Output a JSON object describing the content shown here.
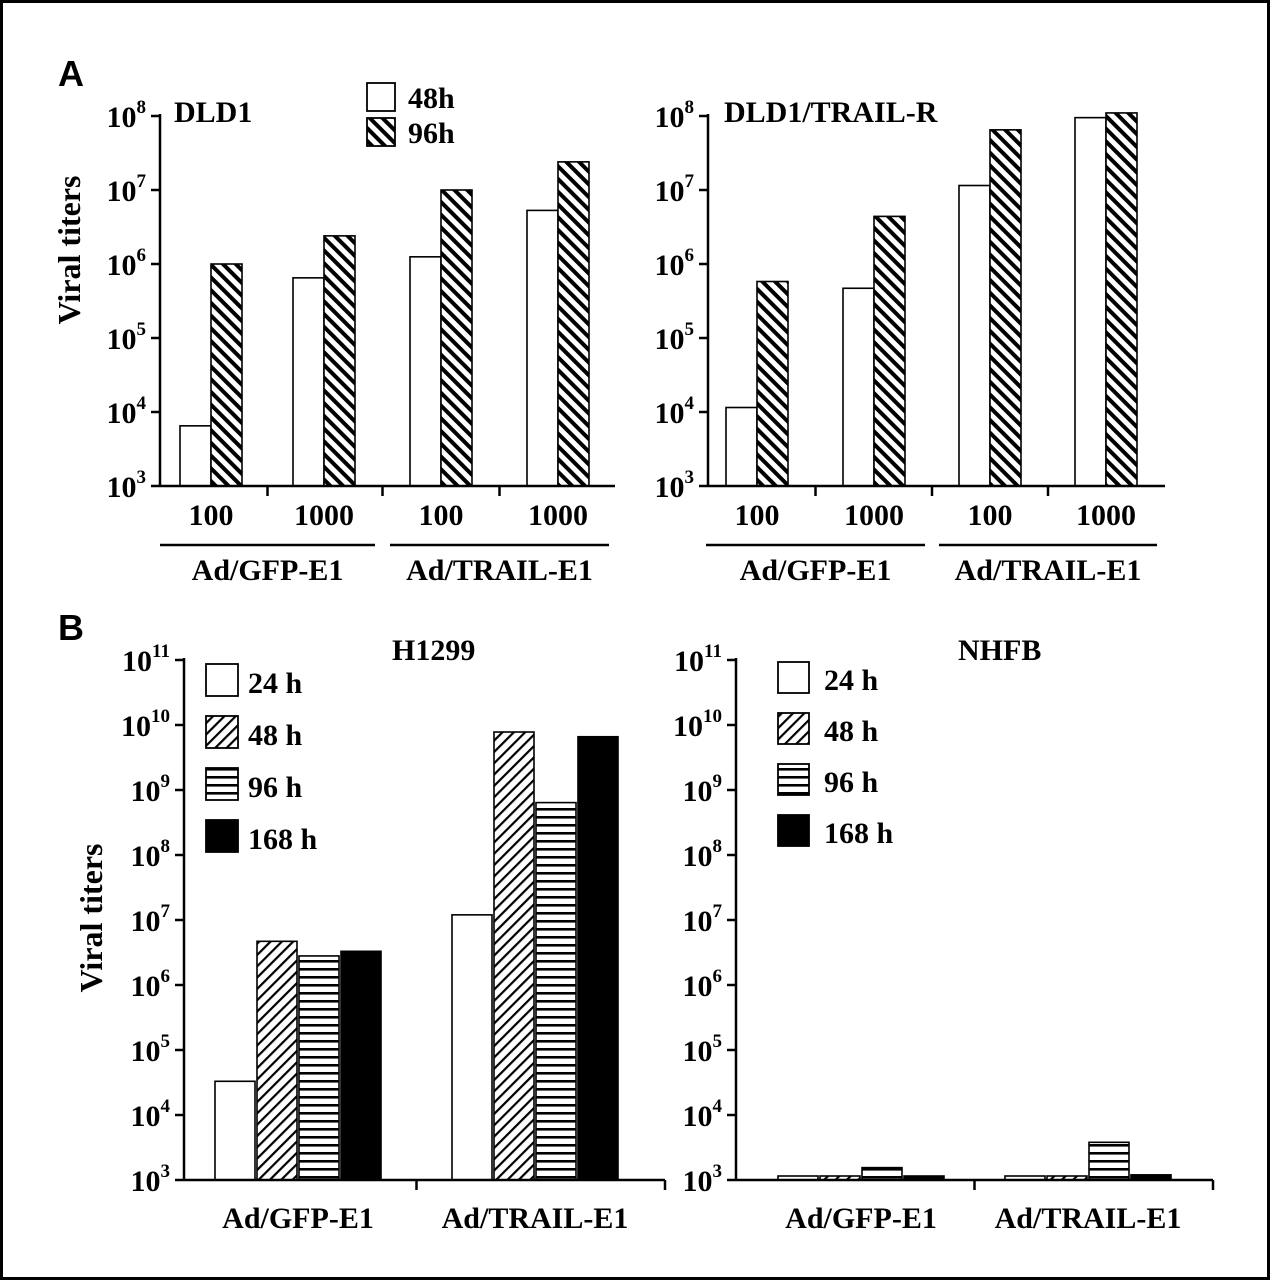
{
  "chart_data": [
    {
      "panel": "A",
      "type": "bar",
      "scale": "log",
      "title": "DLD1",
      "ylabel": "Viral titers",
      "ylim_exponents": [
        3,
        8
      ],
      "tick_exponents": [
        3,
        4,
        5,
        6,
        7,
        8
      ],
      "categories": [
        "100",
        "1000",
        "100",
        "1000"
      ],
      "groups": [
        {
          "label": "Ad/GFP-E1",
          "span": [
            0,
            1
          ]
        },
        {
          "label": "Ad/TRAIL-E1",
          "span": [
            2,
            3
          ]
        }
      ],
      "legend": {
        "position": "top-center"
      },
      "series": [
        {
          "name": "48h",
          "pattern": "white",
          "values": [
            6500,
            650000,
            1250000,
            5300000
          ]
        },
        {
          "name": "96h",
          "pattern": "diag-back",
          "values": [
            1000000,
            2400000,
            10000000,
            24000000
          ]
        }
      ]
    },
    {
      "panel": "A",
      "type": "bar",
      "scale": "log",
      "title": "DLD1/TRAIL-R",
      "ylabel": "",
      "ylim_exponents": [
        3,
        8
      ],
      "tick_exponents": [
        3,
        4,
        5,
        6,
        7,
        8
      ],
      "categories": [
        "100",
        "1000",
        "100",
        "1000"
      ],
      "groups": [
        {
          "label": "Ad/GFP-E1",
          "span": [
            0,
            1
          ]
        },
        {
          "label": "Ad/TRAIL-E1",
          "span": [
            2,
            3
          ]
        }
      ],
      "series": [
        {
          "name": "48h",
          "pattern": "white",
          "values": [
            11500,
            470000,
            11500000,
            95000000
          ]
        },
        {
          "name": "96h",
          "pattern": "diag-back",
          "values": [
            580000,
            4400000,
            65000000,
            110000000
          ]
        }
      ]
    },
    {
      "panel": "B",
      "type": "bar",
      "scale": "log",
      "title": "H1299",
      "ylabel": "Viral titers",
      "ylim_exponents": [
        3,
        11
      ],
      "tick_exponents": [
        3,
        4,
        5,
        6,
        7,
        8,
        9,
        10,
        11
      ],
      "categories": [
        "Ad/GFP-E1",
        "Ad/TRAIL-E1"
      ],
      "legend": {
        "position": "top-left"
      },
      "series": [
        {
          "name": "24 h",
          "pattern": "white",
          "values": [
            33000,
            12000000
          ]
        },
        {
          "name": "48 h",
          "pattern": "diag-fwd",
          "values": [
            4700000,
            7800000000
          ]
        },
        {
          "name": "96 h",
          "pattern": "hlines",
          "values": [
            2800000,
            640000000
          ]
        },
        {
          "name": "168 h",
          "pattern": "black",
          "values": [
            3300000,
            6600000000
          ]
        }
      ]
    },
    {
      "panel": "B",
      "type": "bar",
      "scale": "log",
      "title": "NHFB",
      "ylabel": "",
      "ylim_exponents": [
        3,
        11
      ],
      "tick_exponents": [
        3,
        4,
        5,
        6,
        7,
        8,
        9,
        10,
        11
      ],
      "categories": [
        "Ad/GFP-E1",
        "Ad/TRAIL-E1"
      ],
      "legend": {
        "position": "top-left"
      },
      "series": [
        {
          "name": "24 h",
          "pattern": "white",
          "values": [
            1070,
            1060
          ]
        },
        {
          "name": "48 h",
          "pattern": "diag-fwd",
          "values": [
            1080,
            1070
          ]
        },
        {
          "name": "96 h",
          "pattern": "hlines",
          "values": [
            1550,
            3800
          ]
        },
        {
          "name": "168 h",
          "pattern": "black",
          "values": [
            1100,
            1200
          ]
        }
      ]
    }
  ],
  "panel_labels": {
    "a": "A",
    "b": "B"
  },
  "colors": {
    "ink": "#000000",
    "background": "#ffffff"
  }
}
